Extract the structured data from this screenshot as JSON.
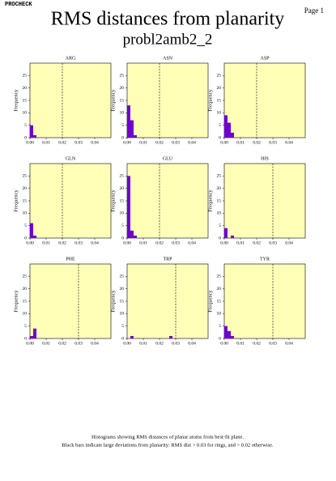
{
  "header": {
    "program": "PROCHECK",
    "page": "Page 1",
    "title": "RMS distances from planarity",
    "subtitle": "probl2amb2_2"
  },
  "footer": [
    "Histograms showing RMS distances of planar atoms from best-fit plane.",
    "Black bars indicate large deviations from planarity: RMS dist > 0.03 for rings, and > 0.02 otherwise."
  ],
  "chart_data": [
    {
      "type": "histogram",
      "title": "ARG",
      "ylabel": "Frequency",
      "bins": [
        0,
        0.002,
        0.004
      ],
      "counts": [
        5,
        1
      ],
      "color": "#7000d0",
      "plot_color": "#ffffb8",
      "threshold": 0.02,
      "xlim": [
        0,
        0.05
      ],
      "ylim": [
        0,
        30
      ],
      "xticks": [
        {
          "value": 0,
          "label": "0.00"
        },
        {
          "value": 0.01,
          "label": "0.01"
        },
        {
          "value": 0.02,
          "label": "0.02"
        },
        {
          "value": 0.03,
          "label": "0.03"
        },
        {
          "value": 0.04,
          "label": "0.04"
        }
      ],
      "yticks": [
        0,
        5,
        10,
        15,
        20,
        25
      ]
    },
    {
      "type": "histogram",
      "title": "ASN",
      "ylabel": "Frequency",
      "bins": [
        0,
        0.002,
        0.004,
        0.006
      ],
      "counts": [
        13,
        7,
        1
      ],
      "color": "#7000d0",
      "plot_color": "#ffffb8",
      "threshold": 0.02,
      "xlim": [
        0,
        0.05
      ],
      "ylim": [
        0,
        30
      ],
      "xticks": [
        {
          "value": 0,
          "label": "0.00"
        },
        {
          "value": 0.01,
          "label": "0.01"
        },
        {
          "value": 0.02,
          "label": "0.02"
        },
        {
          "value": 0.03,
          "label": "0.03"
        },
        {
          "value": 0.04,
          "label": "0.04"
        }
      ],
      "yticks": [
        0,
        5,
        10,
        15,
        20,
        25
      ]
    },
    {
      "type": "histogram",
      "title": "ASP",
      "ylabel": "Frequency",
      "bins": [
        0,
        0.002,
        0.004,
        0.006
      ],
      "counts": [
        9,
        6,
        2
      ],
      "color": "#7000d0",
      "plot_color": "#ffffb8",
      "threshold": 0.02,
      "xlim": [
        0,
        0.05
      ],
      "ylim": [
        0,
        30
      ],
      "xticks": [
        {
          "value": 0,
          "label": "0.00"
        },
        {
          "value": 0.01,
          "label": "0.01"
        },
        {
          "value": 0.02,
          "label": "0.02"
        },
        {
          "value": 0.03,
          "label": "0.03"
        },
        {
          "value": 0.04,
          "label": "0.04"
        }
      ],
      "yticks": [
        0,
        5,
        10,
        15,
        20,
        25
      ]
    },
    {
      "type": "histogram",
      "title": "GLN",
      "ylabel": "Frequency",
      "bins": [
        0,
        0.002,
        0.004
      ],
      "counts": [
        6,
        1
      ],
      "color": "#7000d0",
      "plot_color": "#ffffb8",
      "threshold": 0.02,
      "xlim": [
        0,
        0.05
      ],
      "ylim": [
        0,
        30
      ],
      "xticks": [
        {
          "value": 0,
          "label": "0.00"
        },
        {
          "value": 0.01,
          "label": "0.01"
        },
        {
          "value": 0.02,
          "label": "0.02"
        },
        {
          "value": 0.03,
          "label": "0.03"
        },
        {
          "value": 0.04,
          "label": "0.04"
        }
      ],
      "yticks": [
        0,
        5,
        10,
        15,
        20,
        25
      ]
    },
    {
      "type": "histogram",
      "title": "GLU",
      "ylabel": "Frequency",
      "bins": [
        0,
        0.002,
        0.004,
        0.006
      ],
      "counts": [
        25,
        3,
        1
      ],
      "color": "#7000d0",
      "plot_color": "#ffffb8",
      "threshold": 0.02,
      "xlim": [
        0,
        0.05
      ],
      "ylim": [
        0,
        30
      ],
      "xticks": [
        {
          "value": 0,
          "label": "0.00"
        },
        {
          "value": 0.01,
          "label": "0.01"
        },
        {
          "value": 0.02,
          "label": "0.02"
        },
        {
          "value": 0.03,
          "label": "0.03"
        },
        {
          "value": 0.04,
          "label": "0.04"
        }
      ],
      "yticks": [
        0,
        5,
        10,
        15,
        20,
        25
      ]
    },
    {
      "type": "histogram",
      "title": "HIS",
      "ylabel": "Frequency",
      "bins": [
        0,
        0.002,
        0.004,
        0.006
      ],
      "counts": [
        4,
        0,
        1
      ],
      "color": "#7000d0",
      "plot_color": "#ffffb8",
      "threshold": 0.03,
      "xlim": [
        0,
        0.05
      ],
      "ylim": [
        0,
        30
      ],
      "xticks": [
        {
          "value": 0,
          "label": "0.00"
        },
        {
          "value": 0.01,
          "label": "0.01"
        },
        {
          "value": 0.02,
          "label": "0.02"
        },
        {
          "value": 0.03,
          "label": "0.03"
        },
        {
          "value": 0.04,
          "label": "0.04"
        }
      ],
      "yticks": [
        0,
        5,
        10,
        15,
        20,
        25
      ]
    },
    {
      "type": "histogram",
      "title": "PHE",
      "ylabel": "Frequency",
      "bins": [
        0,
        0.002,
        0.004
      ],
      "counts": [
        1,
        4
      ],
      "color": "#7000d0",
      "plot_color": "#ffffb8",
      "threshold": 0.03,
      "xlim": [
        0,
        0.05
      ],
      "ylim": [
        0,
        30
      ],
      "xticks": [
        {
          "value": 0,
          "label": "0.00"
        },
        {
          "value": 0.01,
          "label": "0.01"
        },
        {
          "value": 0.02,
          "label": "0.02"
        },
        {
          "value": 0.03,
          "label": "0.03"
        },
        {
          "value": 0.04,
          "label": "0.04"
        }
      ],
      "yticks": [
        0,
        5,
        10,
        15,
        20,
        25
      ]
    },
    {
      "type": "histogram",
      "title": "TRP",
      "ylabel": "Frequency",
      "bins": [
        0,
        0.002,
        0.004,
        0.006,
        0.008,
        0.01,
        0.012,
        0.014,
        0.016,
        0.018,
        0.02,
        0.022,
        0.024,
        0.026,
        0.028,
        0.03
      ],
      "counts": [
        0,
        1,
        0,
        0,
        0,
        0,
        0,
        0,
        0,
        0,
        0,
        0,
        0,
        1,
        0
      ],
      "color": "#7000d0",
      "plot_color": "#ffffb8",
      "threshold": 0.03,
      "xlim": [
        0,
        0.05
      ],
      "ylim": [
        0,
        30
      ],
      "xticks": [
        {
          "value": 0,
          "label": "0.00"
        },
        {
          "value": 0.01,
          "label": "0.01"
        },
        {
          "value": 0.02,
          "label": "0.02"
        },
        {
          "value": 0.03,
          "label": "0.03"
        },
        {
          "value": 0.04,
          "label": "0.04"
        }
      ],
      "yticks": [
        0,
        5,
        10,
        15,
        20,
        25
      ]
    },
    {
      "type": "histogram",
      "title": "TYR",
      "ylabel": "Frequency",
      "bins": [
        0,
        0.002,
        0.004,
        0.006
      ],
      "counts": [
        5,
        3,
        1
      ],
      "color": "#7000d0",
      "plot_color": "#ffffb8",
      "threshold": 0.03,
      "xlim": [
        0,
        0.05
      ],
      "ylim": [
        0,
        30
      ],
      "xticks": [
        {
          "value": 0,
          "label": "0.00"
        },
        {
          "value": 0.01,
          "label": "0.01"
        },
        {
          "value": 0.02,
          "label": "0.02"
        },
        {
          "value": 0.03,
          "label": "0.03"
        },
        {
          "value": 0.04,
          "label": "0.04"
        }
      ],
      "yticks": [
        0,
        5,
        10,
        15,
        20,
        25
      ]
    }
  ]
}
